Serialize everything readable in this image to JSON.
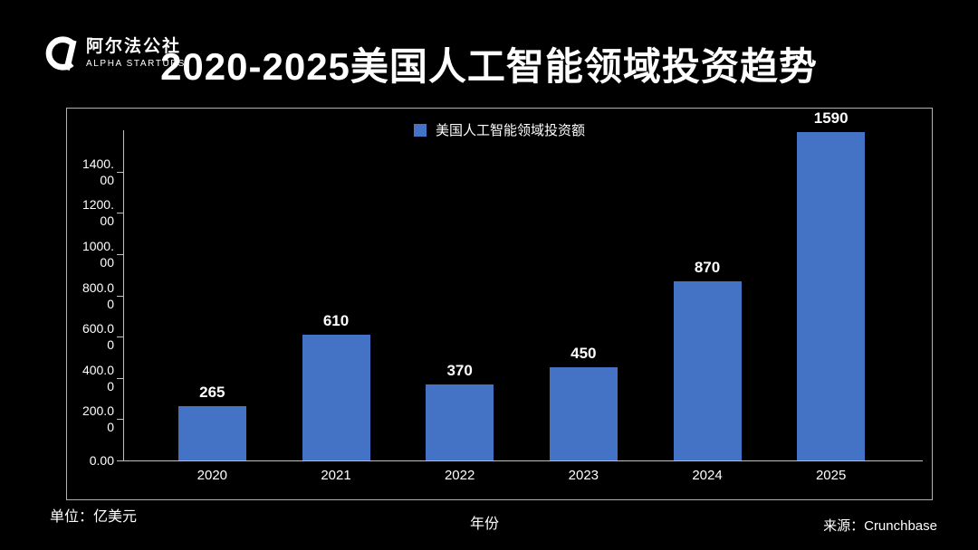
{
  "brand": {
    "name_cn": "阿尔法公社",
    "name_en": "ALPHA STARTUPS"
  },
  "title": "2020-2025美国人工智能领域投资趋势",
  "footnotes": {
    "unit": "单位：亿美元",
    "source": "来源：Crunchbase"
  },
  "chart_data": {
    "type": "bar",
    "title": "2020-2025美国人工智能领域投资趋势",
    "legend": "美国人工智能领域投资额",
    "categories": [
      "2020",
      "2021",
      "2022",
      "2023",
      "2024",
      "2025"
    ],
    "values": [
      265,
      610,
      370,
      450,
      870,
      1590
    ],
    "xlabel": "年份",
    "ylabel": "",
    "unit": "亿美元",
    "ylim": [
      0,
      1600
    ],
    "y_ticks": [
      "0.00",
      "200.00",
      "400.00",
      "600.00",
      "800.00",
      "1000.00",
      "1200.00",
      "1400.00"
    ],
    "bar_color": "#4472C4",
    "axis_color": "#c0c0c0",
    "grid": false,
    "legend_position": "top-center",
    "source": "Crunchbase"
  }
}
